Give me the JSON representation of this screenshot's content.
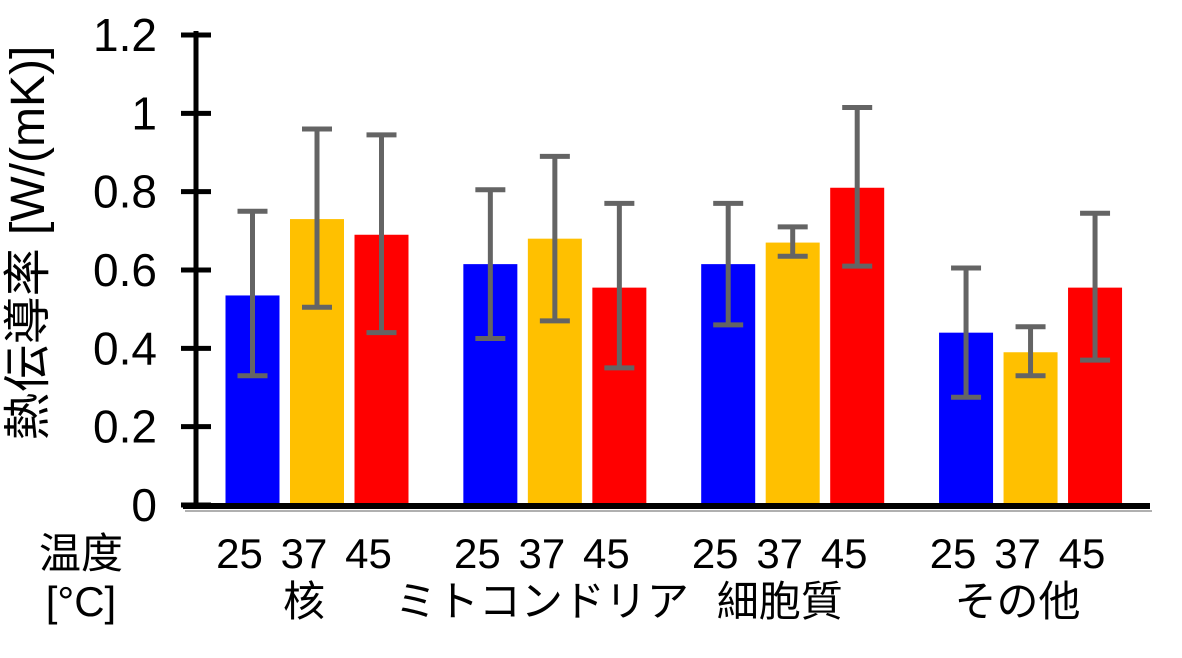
{
  "chart_data": {
    "type": "bar",
    "title": "",
    "ylabel": "熱伝導率 [W/(mK)]",
    "xlabel": "",
    "x_unit_label": [
      "温度",
      "[°C]"
    ],
    "ylim": [
      0,
      1.2
    ],
    "yticks": [
      0,
      0.2,
      0.4,
      0.6,
      0.8,
      1,
      1.2
    ],
    "ytick_labels": [
      "0",
      "0.2",
      "0.4",
      "0.6",
      "0.8",
      "1",
      "1.2"
    ],
    "grid": false,
    "legend": "none",
    "categories": [
      "核",
      "ミトコンドリア",
      "細胞質",
      "その他"
    ],
    "series": [
      {
        "name": "25",
        "color": "#0000FF",
        "values": [
          0.535,
          0.615,
          0.615,
          0.44
        ],
        "err_upper": [
          0.75,
          0.805,
          0.77,
          0.605
        ],
        "err_lower": [
          0.33,
          0.425,
          0.46,
          0.275
        ]
      },
      {
        "name": "37",
        "color": "#FFC000",
        "values": [
          0.73,
          0.68,
          0.67,
          0.39
        ],
        "err_upper": [
          0.96,
          0.89,
          0.71,
          0.455
        ],
        "err_lower": [
          0.505,
          0.47,
          0.635,
          0.33
        ]
      },
      {
        "name": "45",
        "color": "#FF0000",
        "values": [
          0.69,
          0.555,
          0.81,
          0.555
        ],
        "err_upper": [
          0.945,
          0.77,
          1.015,
          0.745
        ],
        "err_lower": [
          0.44,
          0.35,
          0.61,
          0.37
        ]
      }
    ],
    "error_bar_color": "#646464",
    "axis_color": "#000000",
    "baseline_shadow_color": "#b0b0b0",
    "background": "#FFFFFF"
  }
}
